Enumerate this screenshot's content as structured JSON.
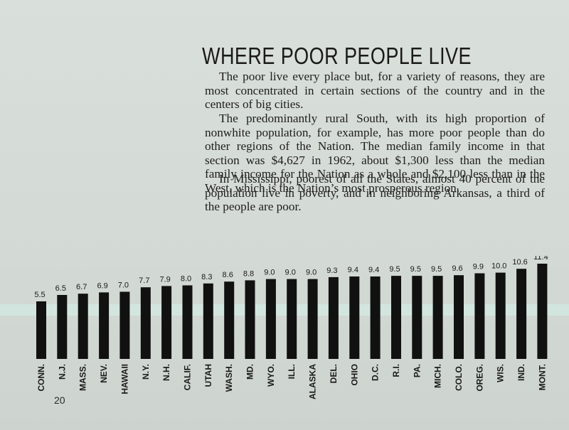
{
  "page": {
    "title": "WHERE POOR PEOPLE LIVE",
    "paragraphs": [
      "The poor live every place but, for a variety of reasons, they are most concentrated in certain sections of the country and in the centers of big cities.",
      "The predominantly rural South, with its high proportion of nonwhite population, for example, has more poor people than do other regions of the Nation. The median family income in that section was $4,627 in 1962, about $1,300 less than the median family income for the Nation as a whole and $2,100 less than in the West, which is the Nation’s most prosperous region.",
      "In Mississippi, poorest of all the States, almost 40 percent of the population live in poverty, and in neighboring Arkansas, a third of the people are poor."
    ],
    "page_number": "20"
  },
  "colors": {
    "bar": "#111111",
    "band": "#d2e6df",
    "background": "#d6dcd7"
  },
  "chart_data": {
    "type": "bar",
    "categories": [
      "CONN.",
      "N.J.",
      "MASS.",
      "NEV.",
      "HAWAII",
      "N.Y.",
      "N.H.",
      "CALIF.",
      "UTAH",
      "WASH.",
      "MD.",
      "WYO.",
      "ILL.",
      "ALASKA",
      "DEL.",
      "OHIO",
      "D.C.",
      "R.I.",
      "PA.",
      "MICH.",
      "COLO.",
      "OREG.",
      "WIS.",
      "IND.",
      "MONT."
    ],
    "values": [
      5.5,
      6.5,
      6.7,
      6.9,
      7.0,
      7.7,
      7.9,
      8.0,
      8.3,
      8.6,
      8.8,
      9.0,
      9.0,
      9.0,
      9.3,
      9.4,
      9.4,
      9.5,
      9.5,
      9.5,
      9.6,
      9.9,
      10.0,
      10.6,
      11.4
    ],
    "value_labels": [
      "5.5",
      "6.5",
      "6.7",
      "6.9",
      "7.0",
      "7.7",
      "7.9",
      "8.0",
      "8.3",
      "8.6",
      "8.8",
      "9.0",
      "9.0",
      "9.0",
      "9.3",
      "9.4",
      "9.4",
      "9.5",
      "9.5",
      "9.5",
      "9.6",
      "9.9",
      "10.0",
      "10.6",
      "11.4"
    ],
    "title": "",
    "xlabel": "",
    "ylabel": "",
    "ylim": [
      0,
      11.4
    ],
    "grid": false,
    "legend": "none"
  }
}
